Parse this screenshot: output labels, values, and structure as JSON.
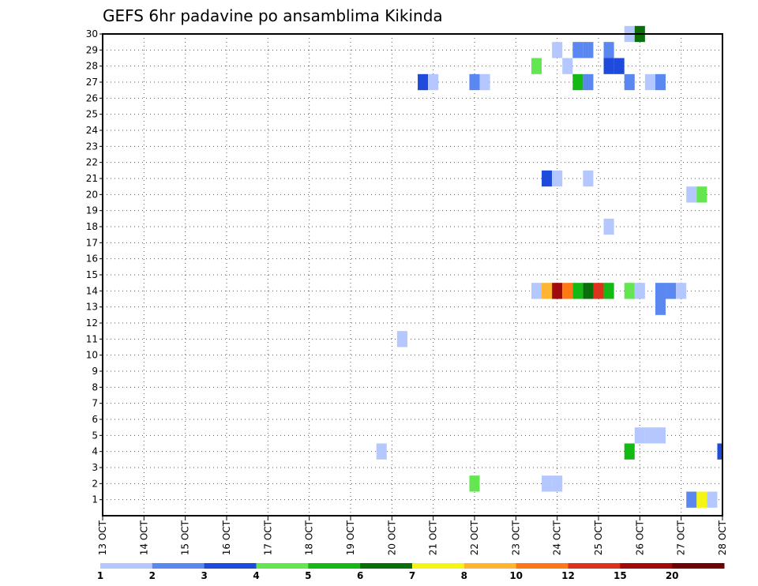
{
  "chart_data": {
    "type": "heatmap",
    "title": "GEFS 6hr padavine po ansamblima Kikinda",
    "x_ticks": [
      "13 OCT",
      "14 OCT",
      "15 OCT",
      "16 OCT",
      "17 OCT",
      "18 OCT",
      "19 OCT",
      "20 OCT",
      "21 OCT",
      "22 OCT",
      "23 OCT",
      "24 OCT",
      "25 OCT",
      "26 OCT",
      "27 OCT",
      "28 OCT"
    ],
    "x_range_days": [
      0,
      15
    ],
    "y_ticks": [
      1,
      2,
      3,
      4,
      5,
      6,
      7,
      8,
      9,
      10,
      11,
      12,
      13,
      14,
      15,
      16,
      17,
      18,
      19,
      20,
      21,
      22,
      23,
      24,
      25,
      26,
      27,
      28,
      29,
      30
    ],
    "y_range": [
      0,
      30
    ],
    "grid": true,
    "colorbar": {
      "position": "bottom",
      "labels": [
        "1",
        "2",
        "3",
        "4",
        "5",
        "6",
        "7",
        "8",
        "10",
        "12",
        "15",
        "20"
      ],
      "colors": [
        "#b4c8ff",
        "#5a87f0",
        "#1e4bdc",
        "#64e650",
        "#14b914",
        "#0a6e0a",
        "#f5f514",
        "#ffb432",
        "#ff7814",
        "#dc321e",
        "#a00a0a",
        "#6e0000"
      ]
    },
    "cells": [
      {
        "member": 30,
        "day": 12.75,
        "level": 1
      },
      {
        "member": 30,
        "day": 13.0,
        "level": 6
      },
      {
        "member": 29,
        "day": 11.0,
        "level": 1
      },
      {
        "member": 29,
        "day": 11.5,
        "level": 2
      },
      {
        "member": 29,
        "day": 11.75,
        "level": 2
      },
      {
        "member": 29,
        "day": 12.25,
        "level": 2
      },
      {
        "member": 28,
        "day": 10.5,
        "level": 4
      },
      {
        "member": 28,
        "day": 11.25,
        "level": 1
      },
      {
        "member": 28,
        "day": 12.25,
        "level": 3
      },
      {
        "member": 28,
        "day": 12.5,
        "level": 3
      },
      {
        "member": 27,
        "day": 7.75,
        "level": 3
      },
      {
        "member": 27,
        "day": 8.0,
        "level": 1
      },
      {
        "member": 27,
        "day": 9.0,
        "level": 2
      },
      {
        "member": 27,
        "day": 9.25,
        "level": 1
      },
      {
        "member": 27,
        "day": 11.5,
        "level": 5
      },
      {
        "member": 27,
        "day": 11.75,
        "level": 2
      },
      {
        "member": 27,
        "day": 12.75,
        "level": 2
      },
      {
        "member": 27,
        "day": 13.25,
        "level": 1
      },
      {
        "member": 27,
        "day": 13.5,
        "level": 2
      },
      {
        "member": 21,
        "day": 10.75,
        "level": 3
      },
      {
        "member": 21,
        "day": 11.0,
        "level": 1
      },
      {
        "member": 21,
        "day": 11.75,
        "level": 1
      },
      {
        "member": 20,
        "day": 14.25,
        "level": 1
      },
      {
        "member": 20,
        "day": 14.5,
        "level": 4
      },
      {
        "member": 18,
        "day": 12.25,
        "level": 1
      },
      {
        "member": 14,
        "day": 10.5,
        "level": 1
      },
      {
        "member": 14,
        "day": 10.75,
        "level": 8
      },
      {
        "member": 14,
        "day": 11.0,
        "level": 11
      },
      {
        "member": 14,
        "day": 11.25,
        "level": 9
      },
      {
        "member": 14,
        "day": 11.5,
        "level": 5
      },
      {
        "member": 14,
        "day": 11.75,
        "level": 6
      },
      {
        "member": 14,
        "day": 12.0,
        "level": 10
      },
      {
        "member": 14,
        "day": 12.25,
        "level": 5
      },
      {
        "member": 14,
        "day": 12.75,
        "level": 4
      },
      {
        "member": 14,
        "day": 13.0,
        "level": 1
      },
      {
        "member": 14,
        "day": 13.5,
        "level": 2
      },
      {
        "member": 14,
        "day": 13.75,
        "level": 2
      },
      {
        "member": 14,
        "day": 14.0,
        "level": 1
      },
      {
        "member": 13,
        "day": 13.5,
        "level": 2
      },
      {
        "member": 11,
        "day": 7.25,
        "level": 1
      },
      {
        "member": 5,
        "day": 13.0,
        "level": 1
      },
      {
        "member": 5,
        "day": 13.25,
        "level": 1
      },
      {
        "member": 5,
        "day": 13.5,
        "level": 1
      },
      {
        "member": 4,
        "day": 6.75,
        "level": 1
      },
      {
        "member": 4,
        "day": 12.75,
        "level": 5
      },
      {
        "member": 4,
        "day": 15.0,
        "level": 3
      },
      {
        "member": 2,
        "day": 9.0,
        "level": 4
      },
      {
        "member": 2,
        "day": 10.75,
        "level": 1
      },
      {
        "member": 2,
        "day": 11.0,
        "level": 1
      },
      {
        "member": 1,
        "day": 14.25,
        "level": 2
      },
      {
        "member": 1,
        "day": 14.5,
        "level": 7
      },
      {
        "member": 1,
        "day": 14.75,
        "level": 1
      }
    ]
  }
}
